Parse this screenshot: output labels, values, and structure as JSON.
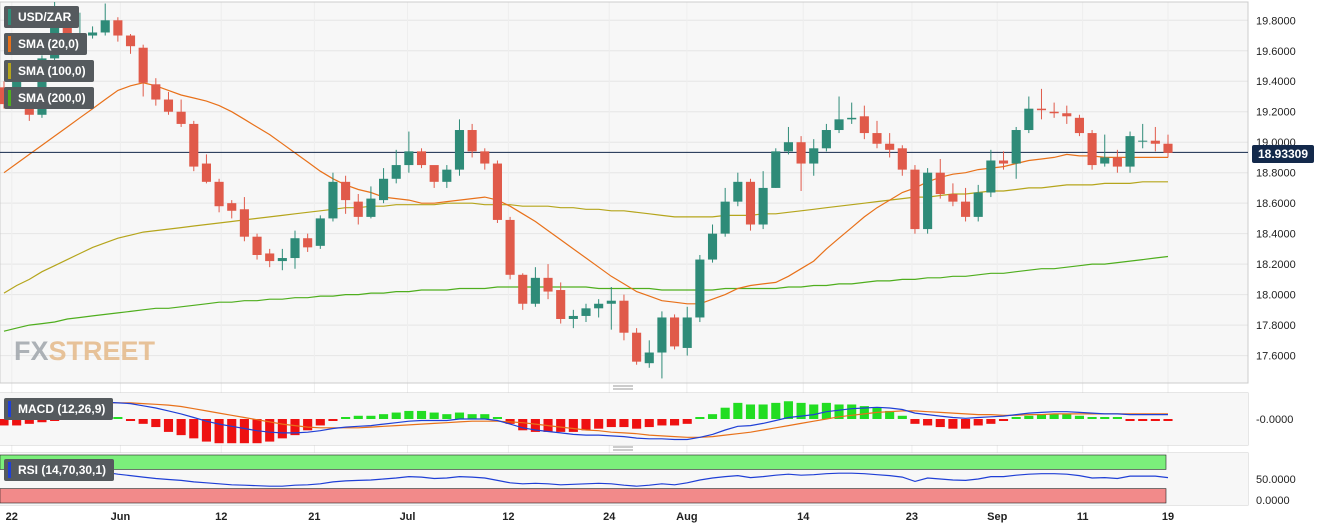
{
  "symbol": "USD/ZAR",
  "last_price": "18.93309",
  "logo": {
    "part1": "FX",
    "part2": "STREET"
  },
  "legends": [
    {
      "label": "SMA (20,0)",
      "color": "#e8711a"
    },
    {
      "label": "SMA (100,0)",
      "color": "#b5a51c"
    },
    {
      "label": "SMA (200,0)",
      "color": "#4fae1e"
    }
  ],
  "macd_label": "MACD (12,26,9)",
  "rsi_label": "RSI (14,70,30,1)",
  "colors": {
    "bull": "#2e8b78",
    "bear": "#e05a4a",
    "sma20": "#e8711a",
    "sma100": "#b5a51c",
    "sma200": "#4fae1e",
    "macd_line": "#1f3fd6",
    "signal_line": "#e8711a",
    "hist_pos": "#22dd22",
    "hist_neg": "#ee1111",
    "rsi_line": "#1f3fd6",
    "overbought": "#7bef7b",
    "oversold": "#f28a8a",
    "price_line": "#13294b"
  },
  "chart_data": {
    "type": "candlestick",
    "price_axis": {
      "ylim": [
        17.42,
        19.92
      ],
      "ticks": [
        "19.8000",
        "19.6000",
        "19.4000",
        "19.2000",
        "19.0000",
        "18.8000",
        "18.6000",
        "18.4000",
        "18.2000",
        "18.0000",
        "17.8000",
        "17.6000"
      ],
      "tick_values": [
        19.8,
        19.6,
        19.4,
        19.2,
        19.0,
        18.8,
        18.6,
        18.4,
        18.2,
        18.0,
        17.8,
        17.6
      ]
    },
    "macd_axis": {
      "ticks": [
        "-0.0000"
      ]
    },
    "rsi_axis": {
      "ticks": [
        "50.0000",
        "0.0000"
      ],
      "overbought": 70,
      "oversold": 30
    },
    "x_labels": [
      "22",
      "Jun",
      "12",
      "21",
      "Jul",
      "12",
      "24",
      "Aug",
      "14",
      "23",
      "Sep",
      "11",
      "19"
    ],
    "candles": [
      [
        19.36,
        19.25,
        19.4,
        19.22
      ],
      [
        19.25,
        19.4,
        19.45,
        19.23
      ],
      [
        19.3,
        19.18,
        19.32,
        19.14
      ],
      [
        19.18,
        19.55,
        19.57,
        19.16
      ],
      [
        19.55,
        19.85,
        19.92,
        19.5
      ],
      [
        19.82,
        19.7,
        19.84,
        19.66
      ],
      [
        19.7,
        19.7,
        19.85,
        19.68
      ],
      [
        19.7,
        19.72,
        19.76,
        19.68
      ],
      [
        19.72,
        19.8,
        19.91,
        19.7
      ],
      [
        19.8,
        19.7,
        19.82,
        19.66
      ],
      [
        19.7,
        19.63,
        19.71,
        19.58
      ],
      [
        19.62,
        19.39,
        19.64,
        19.3
      ],
      [
        19.38,
        19.28,
        19.42,
        19.24
      ],
      [
        19.28,
        19.2,
        19.33,
        19.18
      ],
      [
        19.2,
        19.12,
        19.28,
        19.1
      ],
      [
        19.12,
        18.84,
        19.14,
        18.81
      ],
      [
        18.86,
        18.74,
        18.92,
        18.73
      ],
      [
        18.74,
        18.58,
        18.76,
        18.54
      ],
      [
        18.6,
        18.55,
        18.62,
        18.5
      ],
      [
        18.56,
        18.38,
        18.64,
        18.35
      ],
      [
        18.38,
        18.26,
        18.4,
        18.23
      ],
      [
        18.27,
        18.22,
        18.3,
        18.18
      ],
      [
        18.22,
        18.24,
        18.3,
        18.16
      ],
      [
        18.24,
        18.37,
        18.42,
        18.17
      ],
      [
        18.37,
        18.31,
        18.4,
        18.28
      ],
      [
        18.32,
        18.5,
        18.52,
        18.3
      ],
      [
        18.5,
        18.74,
        18.8,
        18.48
      ],
      [
        18.74,
        18.62,
        18.78,
        18.53
      ],
      [
        18.61,
        18.51,
        18.66,
        18.46
      ],
      [
        18.51,
        18.63,
        18.71,
        18.5
      ],
      [
        18.62,
        18.76,
        18.83,
        18.6
      ],
      [
        18.76,
        18.85,
        18.95,
        18.73
      ],
      [
        18.85,
        18.94,
        19.07,
        18.8
      ],
      [
        18.94,
        18.85,
        18.96,
        18.83
      ],
      [
        18.85,
        18.74,
        18.84,
        18.7
      ],
      [
        18.74,
        18.82,
        18.85,
        18.7
      ],
      [
        18.82,
        19.08,
        19.15,
        18.78
      ],
      [
        19.08,
        18.94,
        19.12,
        18.9
      ],
      [
        18.94,
        18.86,
        18.96,
        18.82
      ],
      [
        18.86,
        18.49,
        18.88,
        18.47
      ],
      [
        18.49,
        18.13,
        18.51,
        18.1
      ],
      [
        18.13,
        17.94,
        18.14,
        17.9
      ],
      [
        17.94,
        18.11,
        18.18,
        17.92
      ],
      [
        18.11,
        18.02,
        18.2,
        17.97
      ],
      [
        18.03,
        17.84,
        18.08,
        17.81
      ],
      [
        17.84,
        17.86,
        17.9,
        17.78
      ],
      [
        17.86,
        17.91,
        17.94,
        17.82
      ],
      [
        17.91,
        17.94,
        17.97,
        17.85
      ],
      [
        17.94,
        17.96,
        18.05,
        17.77
      ],
      [
        17.96,
        17.75,
        18.0,
        17.7
      ],
      [
        17.75,
        17.56,
        17.78,
        17.54
      ],
      [
        17.55,
        17.62,
        17.7,
        17.52
      ],
      [
        17.62,
        17.85,
        17.89,
        17.45
      ],
      [
        17.85,
        17.66,
        17.87,
        17.64
      ],
      [
        17.65,
        17.85,
        17.92,
        17.6
      ],
      [
        17.85,
        18.23,
        18.26,
        17.82
      ],
      [
        18.23,
        18.4,
        18.46,
        18.21
      ],
      [
        18.4,
        18.61,
        18.7,
        18.38
      ],
      [
        18.61,
        18.74,
        18.8,
        18.58
      ],
      [
        18.74,
        18.46,
        18.76,
        18.42
      ],
      [
        18.46,
        18.7,
        18.81,
        18.43
      ],
      [
        18.7,
        18.94,
        18.96,
        18.7
      ],
      [
        18.94,
        19.0,
        19.1,
        18.92
      ],
      [
        19.0,
        18.86,
        19.04,
        18.68
      ],
      [
        18.86,
        18.96,
        19.02,
        18.78
      ],
      [
        18.96,
        19.08,
        19.12,
        18.94
      ],
      [
        19.08,
        19.15,
        19.3,
        19.06
      ],
      [
        19.15,
        19.16,
        19.26,
        19.12
      ],
      [
        19.17,
        19.06,
        19.24,
        19.02
      ],
      [
        19.06,
        18.99,
        19.14,
        18.96
      ],
      [
        18.99,
        18.95,
        19.06,
        18.9
      ],
      [
        18.96,
        18.82,
        18.98,
        18.78
      ],
      [
        18.82,
        18.43,
        18.85,
        18.4
      ],
      [
        18.43,
        18.8,
        18.83,
        18.4
      ],
      [
        18.8,
        18.66,
        18.89,
        18.63
      ],
      [
        18.66,
        18.61,
        18.73,
        18.58
      ],
      [
        18.61,
        18.51,
        18.7,
        18.48
      ],
      [
        18.51,
        18.67,
        18.72,
        18.48
      ],
      [
        18.67,
        18.88,
        18.95,
        18.64
      ],
      [
        18.88,
        18.86,
        18.94,
        18.82
      ],
      [
        18.86,
        19.08,
        19.1,
        18.76
      ],
      [
        19.08,
        19.22,
        19.3,
        19.06
      ],
      [
        19.22,
        19.21,
        19.35,
        19.15
      ],
      [
        19.2,
        19.19,
        19.26,
        19.16
      ],
      [
        19.19,
        19.17,
        19.24,
        19.12
      ],
      [
        19.16,
        19.06,
        19.18,
        19.04
      ],
      [
        19.06,
        18.85,
        19.08,
        18.82
      ],
      [
        18.86,
        18.9,
        19.05,
        18.84
      ],
      [
        18.9,
        18.84,
        18.95,
        18.8
      ],
      [
        18.84,
        19.04,
        19.07,
        18.8
      ],
      [
        19.01,
        19.01,
        19.12,
        18.96
      ],
      [
        19.01,
        18.99,
        19.1,
        18.94
      ],
      [
        18.99,
        18.93,
        19.05,
        18.9
      ]
    ],
    "sma20": [
      18.8,
      18.86,
      18.92,
      18.98,
      19.04,
      19.1,
      19.16,
      19.22,
      19.28,
      19.34,
      19.37,
      19.39,
      19.37,
      19.34,
      19.31,
      19.29,
      19.27,
      19.24,
      19.2,
      19.15,
      19.1,
      19.05,
      18.99,
      18.93,
      18.87,
      18.81,
      18.76,
      18.72,
      18.69,
      18.67,
      18.64,
      18.63,
      18.62,
      18.6,
      18.6,
      18.61,
      18.62,
      18.63,
      18.64,
      18.62,
      18.58,
      18.53,
      18.48,
      18.42,
      18.36,
      18.3,
      18.24,
      18.18,
      18.12,
      18.07,
      18.02,
      17.99,
      17.96,
      17.95,
      17.94,
      17.94,
      17.97,
      18.0,
      18.04,
      18.06,
      18.07,
      18.08,
      18.12,
      18.17,
      18.22,
      18.3,
      18.37,
      18.44,
      18.51,
      18.57,
      18.62,
      18.67,
      18.7,
      18.74,
      18.77,
      18.79,
      18.8,
      18.82,
      18.83,
      18.84,
      18.86,
      18.88,
      18.89,
      18.9,
      18.92,
      18.91,
      18.91,
      18.9,
      18.9,
      18.9,
      18.9,
      18.9,
      18.9
    ],
    "sma100": [
      18.01,
      18.06,
      18.1,
      18.15,
      18.19,
      18.23,
      18.27,
      18.31,
      18.34,
      18.37,
      18.39,
      18.41,
      18.42,
      18.43,
      18.44,
      18.45,
      18.46,
      18.47,
      18.48,
      18.49,
      18.5,
      18.51,
      18.52,
      18.53,
      18.54,
      18.55,
      18.56,
      18.57,
      18.57,
      18.58,
      18.58,
      18.59,
      18.59,
      18.59,
      18.59,
      18.6,
      18.6,
      18.6,
      18.59,
      18.59,
      18.59,
      18.58,
      18.58,
      18.58,
      18.57,
      18.57,
      18.56,
      18.56,
      18.55,
      18.55,
      18.54,
      18.53,
      18.52,
      18.51,
      18.51,
      18.51,
      18.51,
      18.52,
      18.52,
      18.52,
      18.53,
      18.53,
      18.54,
      18.55,
      18.56,
      18.57,
      18.58,
      18.59,
      18.6,
      18.61,
      18.62,
      18.63,
      18.64,
      18.64,
      18.65,
      18.66,
      18.66,
      18.67,
      18.68,
      18.68,
      18.69,
      18.7,
      18.7,
      18.71,
      18.72,
      18.72,
      18.72,
      18.73,
      18.73,
      18.73,
      18.74,
      18.74,
      18.74
    ],
    "sma200": [
      17.76,
      17.78,
      17.8,
      17.81,
      17.82,
      17.84,
      17.85,
      17.86,
      17.87,
      17.88,
      17.89,
      17.9,
      17.91,
      17.91,
      17.92,
      17.93,
      17.94,
      17.95,
      17.95,
      17.96,
      17.96,
      17.97,
      17.97,
      17.98,
      17.98,
      17.99,
      17.99,
      18.0,
      18.0,
      18.01,
      18.01,
      18.02,
      18.02,
      18.03,
      18.03,
      18.03,
      18.04,
      18.04,
      18.04,
      18.05,
      18.05,
      18.05,
      18.05,
      18.05,
      18.05,
      18.05,
      18.05,
      18.04,
      18.04,
      18.04,
      18.04,
      18.04,
      18.03,
      18.03,
      18.03,
      18.03,
      18.03,
      18.04,
      18.04,
      18.04,
      18.04,
      18.04,
      18.05,
      18.05,
      18.06,
      18.06,
      18.07,
      18.07,
      18.08,
      18.09,
      18.09,
      18.1,
      18.1,
      18.11,
      18.11,
      18.12,
      18.12,
      18.13,
      18.14,
      18.14,
      18.15,
      18.16,
      18.17,
      18.17,
      18.18,
      18.19,
      18.2,
      18.2,
      18.21,
      18.22,
      18.23,
      18.24,
      18.25
    ],
    "macd": [
      0.16,
      0.17,
      0.18,
      0.19,
      0.2,
      0.21,
      0.22,
      0.22,
      0.23,
      0.22,
      0.21,
      0.18,
      0.15,
      0.11,
      0.07,
      0.02,
      -0.03,
      -0.07,
      -0.1,
      -0.13,
      -0.16,
      -0.18,
      -0.19,
      -0.19,
      -0.18,
      -0.16,
      -0.13,
      -0.11,
      -0.1,
      -0.09,
      -0.07,
      -0.05,
      -0.03,
      -0.02,
      -0.02,
      -0.02,
      0.0,
      0.0,
      0.0,
      -0.02,
      -0.07,
      -0.12,
      -0.15,
      -0.17,
      -0.19,
      -0.21,
      -0.22,
      -0.22,
      -0.23,
      -0.24,
      -0.26,
      -0.27,
      -0.27,
      -0.28,
      -0.28,
      -0.25,
      -0.21,
      -0.15,
      -0.1,
      -0.09,
      -0.06,
      -0.02,
      0.02,
      0.04,
      0.06,
      0.1,
      0.12,
      0.14,
      0.15,
      0.16,
      0.15,
      0.13,
      0.08,
      0.06,
      0.04,
      0.02,
      0.01,
      0.02,
      0.03,
      0.04,
      0.06,
      0.08,
      0.09,
      0.1,
      0.1,
      0.09,
      0.08,
      0.07,
      0.07,
      0.06,
      0.06,
      0.06,
      0.06
    ],
    "signal": [
      0.2,
      0.21,
      0.21,
      0.21,
      0.21,
      0.21,
      0.21,
      0.22,
      0.22,
      0.22,
      0.22,
      0.21,
      0.2,
      0.19,
      0.17,
      0.14,
      0.11,
      0.08,
      0.05,
      0.02,
      -0.01,
      -0.04,
      -0.07,
      -0.09,
      -0.11,
      -0.12,
      -0.12,
      -0.12,
      -0.12,
      -0.11,
      -0.1,
      -0.09,
      -0.08,
      -0.07,
      -0.06,
      -0.05,
      -0.04,
      -0.03,
      -0.03,
      -0.03,
      -0.04,
      -0.05,
      -0.07,
      -0.09,
      -0.11,
      -0.13,
      -0.15,
      -0.16,
      -0.18,
      -0.19,
      -0.2,
      -0.22,
      -0.23,
      -0.24,
      -0.25,
      -0.25,
      -0.24,
      -0.22,
      -0.2,
      -0.18,
      -0.15,
      -0.12,
      -0.09,
      -0.06,
      -0.03,
      0.0,
      0.03,
      0.05,
      0.07,
      0.09,
      0.1,
      0.11,
      0.11,
      0.1,
      0.09,
      0.08,
      0.07,
      0.06,
      0.06,
      0.05,
      0.05,
      0.06,
      0.06,
      0.07,
      0.07,
      0.07,
      0.07,
      0.07,
      0.07,
      0.07,
      0.07,
      0.07,
      0.07
    ],
    "rsi": [
      68,
      67,
      66,
      66,
      67,
      68,
      66,
      65,
      64,
      60,
      57,
      54,
      51,
      49,
      47,
      44,
      42,
      40,
      38,
      37,
      36,
      35,
      35,
      37,
      38,
      40,
      44,
      46,
      47,
      48,
      50,
      52,
      55,
      54,
      51,
      52,
      55,
      54,
      52,
      47,
      42,
      40,
      41,
      40,
      38,
      39,
      40,
      41,
      40,
      37,
      35,
      37,
      40,
      38,
      42,
      48,
      52,
      55,
      57,
      53,
      55,
      58,
      60,
      58,
      59,
      61,
      62,
      62,
      61,
      59,
      57,
      54,
      45,
      52,
      50,
      48,
      47,
      50,
      55,
      55,
      58,
      60,
      61,
      61,
      60,
      57,
      52,
      53,
      51,
      56,
      56,
      56,
      53
    ]
  }
}
